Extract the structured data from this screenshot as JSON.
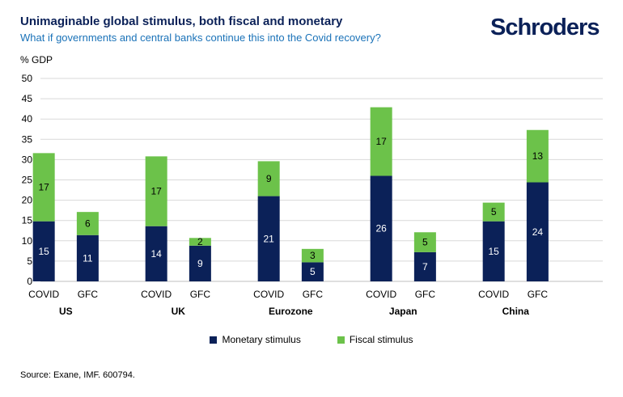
{
  "header": {
    "title": "Unimaginable global stimulus, both fiscal and monetary",
    "subtitle": "What if governments and central banks continue this into the Covid recovery?",
    "logo": "Schroders"
  },
  "footer": {
    "source": "Source: Exane, IMF. 600794."
  },
  "colors": {
    "monetary": "#0b2158",
    "fiscal": "#6cc24a",
    "grid": "#d9d9d9"
  },
  "chart_data": {
    "type": "bar",
    "stacked": true,
    "ylabel": "% GDP",
    "ylim": [
      0,
      50
    ],
    "yticks": [
      0,
      5,
      10,
      15,
      20,
      25,
      30,
      35,
      40,
      45,
      50
    ],
    "grid": true,
    "legend_position": "bottom",
    "groups": [
      "US",
      "UK",
      "Eurozone",
      "Japan",
      "China"
    ],
    "categories": [
      "COVID",
      "GFC",
      "COVID",
      "GFC",
      "COVID",
      "GFC",
      "COVID",
      "GFC",
      "COVID",
      "GFC"
    ],
    "series": [
      {
        "name": "Monetary stimulus",
        "values": [
          14.8,
          11.4,
          13.6,
          8.8,
          21.0,
          4.7,
          26.0,
          7.2,
          14.8,
          24.4
        ],
        "labels": [
          "15",
          "11",
          "14",
          "9",
          "21",
          "5",
          "26",
          "7",
          "15",
          "24"
        ]
      },
      {
        "name": "Fiscal stimulus",
        "values": [
          16.8,
          5.7,
          17.2,
          1.9,
          8.6,
          3.3,
          16.9,
          4.9,
          4.6,
          12.9
        ],
        "labels": [
          "17",
          "6",
          "17",
          "2",
          "9",
          "3",
          "17",
          "5",
          "5",
          "13"
        ]
      }
    ]
  }
}
